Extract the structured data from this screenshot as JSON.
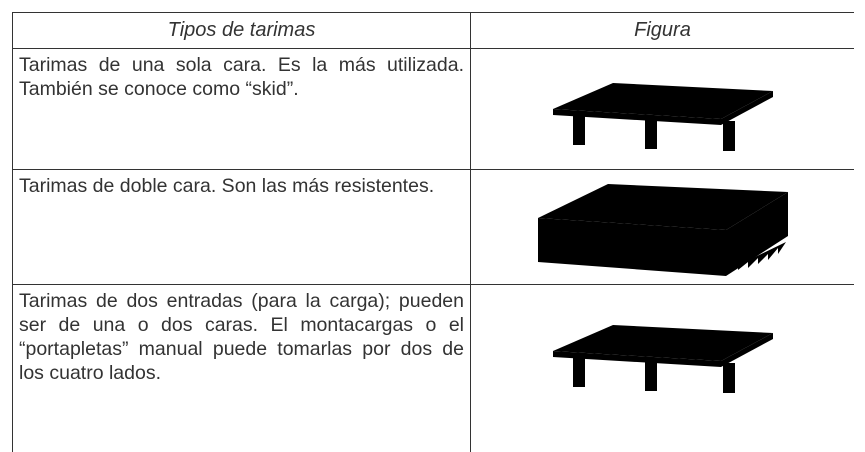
{
  "table": {
    "header": [
      "Tipos de tarimas",
      "Figura"
    ],
    "rows": [
      [
        "Tarimas de una sola cara. Es la más utilizada.  También se conoce como “skid”."
      ],
      [
        "Tarimas de doble cara.  Son las más resistentes."
      ],
      [
        "Tarimas de dos entradas  (para la carga); pueden ser de una o dos caras. El montacargas o el “portapletas” manual puede tomarlas por dos de los cuatro lados."
      ]
    ]
  }
}
